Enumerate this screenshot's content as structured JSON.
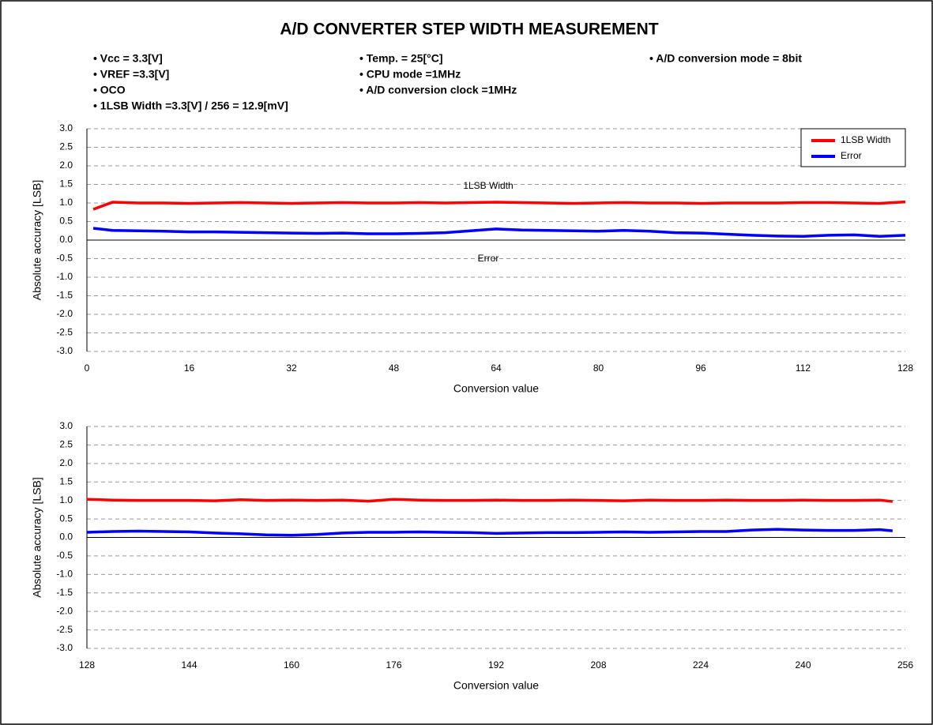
{
  "title": "A/D CONVERTER STEP WIDTH MEASUREMENT",
  "notes": [
    [
      "• Vcc = 3.3[V]",
      "• VREF =3.3[V]",
      "• OCO",
      "• 1LSB Width =3.3[V] / 256 = 12.9[mV]"
    ],
    [
      "• Temp. = 25[°C]",
      "• CPU mode =1MHz",
      "• A/D conversion clock =1MHz"
    ],
    [
      "• A/D conversion mode = 8bit"
    ]
  ],
  "chart_data": [
    {
      "type": "line",
      "xlabel": "Conversion value",
      "ylabel": "Absolute accuracy [LSB]",
      "annotations": [
        "1LSB Width",
        "Error"
      ],
      "legend": "upper right",
      "grid": true,
      "x": [
        1,
        4,
        8,
        12,
        16,
        20,
        24,
        28,
        32,
        36,
        40,
        44,
        48,
        52,
        56,
        60,
        64,
        68,
        72,
        76,
        80,
        84,
        88,
        92,
        96,
        100,
        104,
        108,
        112,
        116,
        120,
        124,
        128
      ],
      "series": [
        {
          "name": "1LSB Width",
          "color": "#ff0000",
          "values": [
            0.83,
            1.02,
            1.0,
            1.0,
            0.99,
            1.0,
            1.01,
            1.0,
            0.99,
            1.0,
            1.01,
            1.0,
            1.0,
            1.01,
            1.0,
            1.01,
            1.02,
            1.01,
            1.0,
            0.99,
            1.0,
            1.01,
            1.0,
            1.0,
            0.99,
            1.0,
            1.0,
            1.0,
            1.01,
            1.01,
            1.0,
            0.99,
            1.03
          ]
        },
        {
          "name": "Error",
          "color": "#0000ff",
          "values": [
            0.32,
            0.26,
            0.25,
            0.24,
            0.22,
            0.22,
            0.21,
            0.2,
            0.19,
            0.18,
            0.19,
            0.17,
            0.17,
            0.18,
            0.2,
            0.25,
            0.3,
            0.27,
            0.26,
            0.25,
            0.24,
            0.26,
            0.24,
            0.2,
            0.19,
            0.16,
            0.13,
            0.11,
            0.1,
            0.13,
            0.14,
            0.1,
            0.13
          ]
        }
      ],
      "xlim": [
        0,
        128
      ],
      "xticks": [
        0,
        16,
        32,
        48,
        64,
        80,
        96,
        112,
        128
      ],
      "ylim": [
        -3,
        3
      ],
      "yticks": [
        {
          "value": 3,
          "label": "3.0"
        },
        {
          "value": 2.5,
          "label": "2.5"
        },
        {
          "value": 2,
          "label": "2.0"
        },
        {
          "value": 1.5,
          "label": "1.5"
        },
        {
          "value": 1,
          "label": "1.0"
        },
        {
          "value": 0.5,
          "label": "0.5"
        },
        {
          "value": 0,
          "label": "0.0"
        },
        {
          "value": -0.5,
          "label": "-0.5"
        },
        {
          "value": -1,
          "label": "-1.0"
        },
        {
          "value": -1.5,
          "label": "-1.5"
        },
        {
          "value": -2,
          "label": "-2.0"
        },
        {
          "value": -2.5,
          "label": "-2.5"
        },
        {
          "value": -3,
          "label": "-3.0"
        }
      ]
    },
    {
      "type": "line",
      "xlabel": "Conversion value",
      "ylabel": "Absolute accuracy [LSB]",
      "grid": true,
      "x": [
        128,
        132,
        136,
        140,
        144,
        148,
        152,
        156,
        160,
        164,
        168,
        172,
        176,
        180,
        184,
        188,
        192,
        196,
        200,
        204,
        208,
        212,
        216,
        220,
        224,
        228,
        232,
        236,
        240,
        244,
        248,
        252,
        254
      ],
      "series": [
        {
          "color": "#ff0000",
          "values": [
            1.03,
            1.01,
            1.0,
            1.0,
            1.0,
            0.99,
            1.02,
            1.0,
            1.01,
            1.0,
            1.01,
            0.98,
            1.03,
            1.01,
            1.0,
            1.0,
            1.01,
            1.0,
            1.0,
            1.01,
            1.0,
            0.99,
            1.01,
            1.0,
            1.0,
            1.01,
            1.0,
            1.0,
            1.01,
            1.0,
            1.0,
            1.01,
            0.97
          ]
        },
        {
          "color": "#0000ff",
          "values": [
            0.14,
            0.16,
            0.17,
            0.16,
            0.15,
            0.12,
            0.1,
            0.07,
            0.06,
            0.08,
            0.12,
            0.14,
            0.14,
            0.15,
            0.14,
            0.13,
            0.11,
            0.12,
            0.13,
            0.13,
            0.14,
            0.15,
            0.14,
            0.15,
            0.16,
            0.16,
            0.2,
            0.22,
            0.2,
            0.19,
            0.19,
            0.21,
            0.18
          ]
        }
      ],
      "xlim": [
        128,
        256
      ],
      "xticks": [
        128,
        144,
        160,
        176,
        192,
        208,
        224,
        240,
        256
      ],
      "ylim": [
        -3,
        3
      ],
      "yticks": [
        {
          "value": 3,
          "label": "3.0"
        },
        {
          "value": 2.5,
          "label": "2.5"
        },
        {
          "value": 2,
          "label": "2.0"
        },
        {
          "value": 1.5,
          "label": "1.5"
        },
        {
          "value": 1,
          "label": "1.0"
        },
        {
          "value": 0.5,
          "label": "0.5"
        },
        {
          "value": 0,
          "label": "0.0"
        },
        {
          "value": -0.5,
          "label": "-0.5"
        },
        {
          "value": -1,
          "label": "-1.0"
        },
        {
          "value": -1.5,
          "label": "-1.5"
        },
        {
          "value": -2,
          "label": "-2.0"
        },
        {
          "value": -2.5,
          "label": "-2.5"
        },
        {
          "value": -3,
          "label": "-3.0"
        }
      ]
    }
  ]
}
